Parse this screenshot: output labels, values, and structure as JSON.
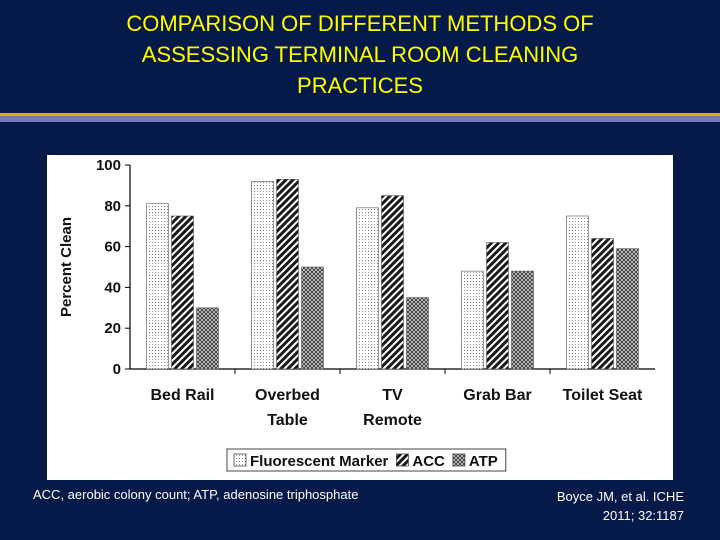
{
  "slide": {
    "title": "COMPARISON OF DIFFERENT METHODS OF\nASSESSING TERMINAL ROOM CLEANING\nPRACTICES",
    "footnote": "ACC, aerobic colony count; ATP, adenosine triphosphate",
    "citation": "Boyce JM, et al.  ICHE\n2011; 32:1187",
    "colors": {
      "background": "#061a4a",
      "title": "#ffff00",
      "rule_gold": "#d4b000",
      "rule_purple": "#7777bb"
    }
  },
  "chart_data": {
    "type": "bar",
    "title": "",
    "ylabel": "Percent Clean",
    "xlabel": "",
    "ylim": [
      0,
      100
    ],
    "yticks": [
      0,
      20,
      40,
      60,
      80,
      100
    ],
    "grid": false,
    "legend_position": "bottom",
    "categories": [
      [
        "Bed Rail"
      ],
      [
        "Overbed",
        "Table"
      ],
      [
        "TV",
        "Remote"
      ],
      [
        "Grab Bar"
      ],
      [
        "Toilet Seat"
      ]
    ],
    "series": [
      {
        "name": "Fluorescent Marker",
        "pattern": "dots",
        "values": [
          81,
          92,
          79,
          48,
          75
        ]
      },
      {
        "name": "ACC",
        "pattern": "diagonal-hatch",
        "values": [
          75,
          93,
          85,
          62,
          64
        ]
      },
      {
        "name": "ATP",
        "pattern": "checker",
        "values": [
          30,
          50,
          35,
          48,
          59
        ]
      }
    ]
  }
}
